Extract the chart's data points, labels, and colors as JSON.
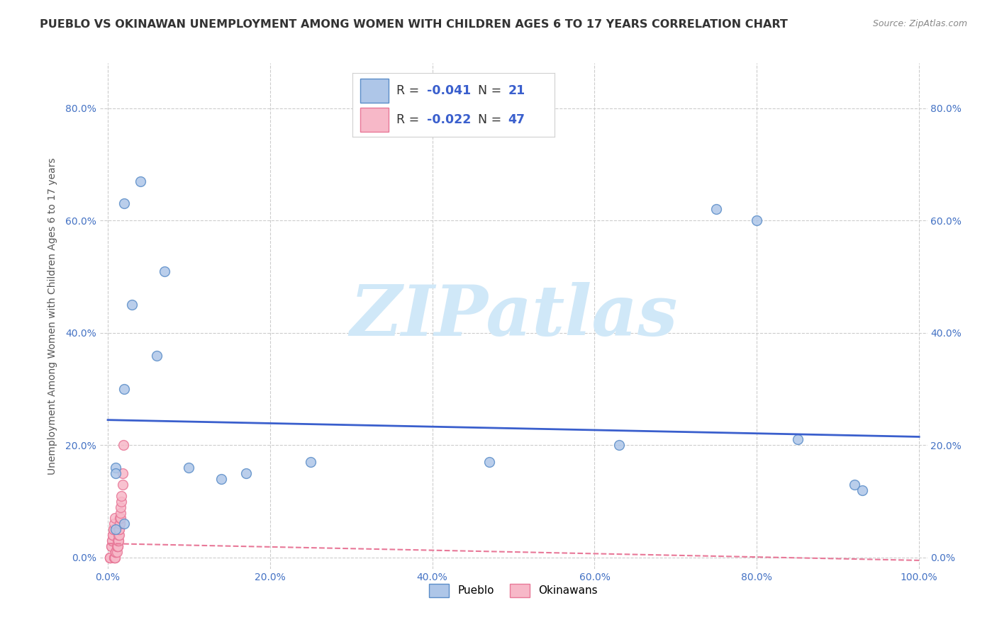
{
  "title": "PUEBLO VS OKINAWAN UNEMPLOYMENT AMONG WOMEN WITH CHILDREN AGES 6 TO 17 YEARS CORRELATION CHART",
  "source": "Source: ZipAtlas.com",
  "ylabel": "Unemployment Among Women with Children Ages 6 to 17 years",
  "xlim": [
    -0.01,
    1.01
  ],
  "ylim": [
    -0.02,
    0.88
  ],
  "pueblo_x": [
    0.02,
    0.04,
    0.07,
    0.03,
    0.06,
    0.01,
    0.1,
    0.17,
    0.25,
    0.47,
    0.63,
    0.75,
    0.85,
    0.92,
    0.93,
    0.01,
    0.01,
    0.02,
    0.14,
    0.8,
    0.02
  ],
  "pueblo_y": [
    0.63,
    0.67,
    0.51,
    0.45,
    0.36,
    0.16,
    0.16,
    0.15,
    0.17,
    0.17,
    0.2,
    0.62,
    0.21,
    0.13,
    0.12,
    0.15,
    0.05,
    0.06,
    0.14,
    0.6,
    0.3
  ],
  "okinawan_x": [
    0.003,
    0.003,
    0.003,
    0.003,
    0.004,
    0.004,
    0.005,
    0.005,
    0.006,
    0.006,
    0.007,
    0.007,
    0.008,
    0.009,
    0.008,
    0.008,
    0.009,
    0.009,
    0.009,
    0.01,
    0.01,
    0.01,
    0.01,
    0.011,
    0.011,
    0.011,
    0.012,
    0.012,
    0.012,
    0.012,
    0.013,
    0.013,
    0.013,
    0.014,
    0.014,
    0.014,
    0.015,
    0.015,
    0.015,
    0.016,
    0.016,
    0.016,
    0.017,
    0.017,
    0.018,
    0.018,
    0.019
  ],
  "okinawan_y": [
    0.0,
    0.0,
    0.0,
    0.0,
    0.02,
    0.02,
    0.03,
    0.03,
    0.04,
    0.04,
    0.05,
    0.05,
    0.06,
    0.07,
    0.0,
    0.0,
    0.0,
    0.0,
    0.0,
    0.01,
    0.01,
    0.01,
    0.01,
    0.01,
    0.02,
    0.02,
    0.02,
    0.02,
    0.02,
    0.03,
    0.03,
    0.03,
    0.04,
    0.04,
    0.05,
    0.05,
    0.06,
    0.06,
    0.07,
    0.07,
    0.08,
    0.09,
    0.1,
    0.11,
    0.13,
    0.15,
    0.2
  ],
  "pueblo_color": "#aec6e8",
  "pueblo_edge_color": "#5b8dc8",
  "okinawan_color": "#f7b8c8",
  "okinawan_edge_color": "#e87898",
  "pueblo_line_color": "#3a5fcd",
  "okinawan_line_color": "#e87898",
  "pueblo_R": -0.041,
  "pueblo_N": 21,
  "okinawan_R": -0.022,
  "okinawan_N": 47,
  "pueblo_trend_y_start": 0.245,
  "pueblo_trend_y_end": 0.215,
  "okinawan_trend_y_start": 0.025,
  "okinawan_trend_y_end": -0.005,
  "ytick_positions": [
    0.0,
    0.2,
    0.4,
    0.6,
    0.8
  ],
  "ytick_labels": [
    "0.0%",
    "20.0%",
    "40.0%",
    "60.0%",
    "80.0%"
  ],
  "xtick_positions": [
    0.0,
    0.2,
    0.4,
    0.6,
    0.8,
    1.0
  ],
  "xtick_labels": [
    "0.0%",
    "20.0%",
    "40.0%",
    "60.0%",
    "80.0%",
    "100.0%"
  ],
  "background_color": "#ffffff",
  "grid_color": "#cccccc",
  "marker_size": 100,
  "tick_color": "#4472c4",
  "title_fontsize": 11.5,
  "axis_label_fontsize": 10,
  "tick_fontsize": 10,
  "legend_value_color": "#3a5fcd",
  "legend_label_color": "#333333",
  "source_fontsize": 9,
  "watermark_text": "ZIPatlas",
  "watermark_color": "#d0e8f8"
}
